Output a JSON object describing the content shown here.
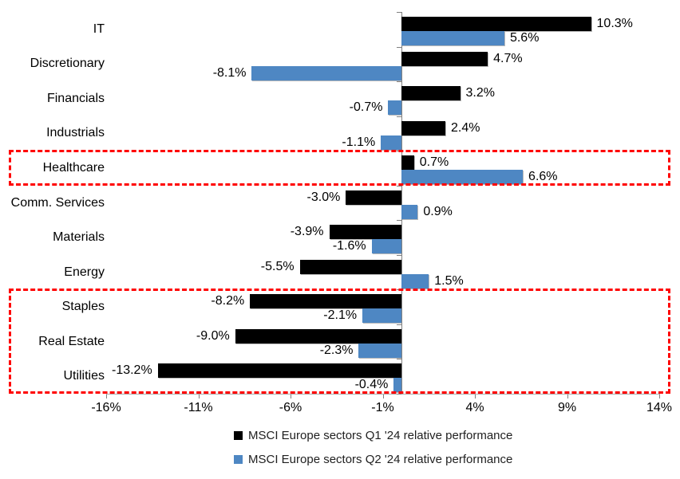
{
  "chart_data": {
    "type": "bar",
    "orientation": "horizontal",
    "title": "",
    "categories": [
      "IT",
      "Discretionary",
      "Financials",
      "Industrials",
      "Healthcare",
      "Comm. Services",
      "Materials",
      "Energy",
      "Staples",
      "Real Estate",
      "Utilities"
    ],
    "series": [
      {
        "name": "MSCI Europe sectors Q1 '24 relative performance",
        "color": "#000000",
        "values": [
          10.3,
          4.7,
          3.2,
          2.4,
          0.7,
          -3.0,
          -3.9,
          -5.5,
          -8.2,
          -9.0,
          -13.2
        ],
        "labels": [
          "10.3%",
          "4.7%",
          "3.2%",
          "2.4%",
          "0.7%",
          "-3.0%",
          "-3.9%",
          "-5.5%",
          "-8.2%",
          "-9.0%",
          "-13.2%"
        ]
      },
      {
        "name": "MSCI Europe sectors Q2 '24 relative performance",
        "color": "#4e87c3",
        "values": [
          5.6,
          -8.1,
          -0.7,
          -1.1,
          6.6,
          0.9,
          -1.6,
          1.5,
          -2.1,
          -2.3,
          -0.4
        ],
        "labels": [
          "5.6%",
          "-8.1%",
          "-0.7%",
          "-1.1%",
          "6.6%",
          "0.9%",
          "-1.6%",
          "1.5%",
          "-2.1%",
          "-2.3%",
          "-0.4%"
        ]
      }
    ],
    "xlim": [
      -16,
      14
    ],
    "x_tick_values": [
      -16,
      -11,
      -6,
      -1,
      4,
      9,
      14
    ],
    "x_tick_labels": [
      "-16%",
      "-11%",
      "-6%",
      "-1%",
      "4%",
      "9%",
      "14%"
    ],
    "grid": false,
    "legend_position": "bottom",
    "highlights": [
      {
        "start_category": "Healthcare",
        "start": 4,
        "end": 4
      },
      {
        "start_category": "Staples",
        "end_category": "Utilities",
        "start": 8,
        "end": 10
      }
    ],
    "highlight_color": "#ff0000"
  },
  "colors": {
    "q1_black": "#000000",
    "q2_blue": "#4e87c3",
    "highlight_red": "#ff0000",
    "axis_gray": "#808080"
  }
}
